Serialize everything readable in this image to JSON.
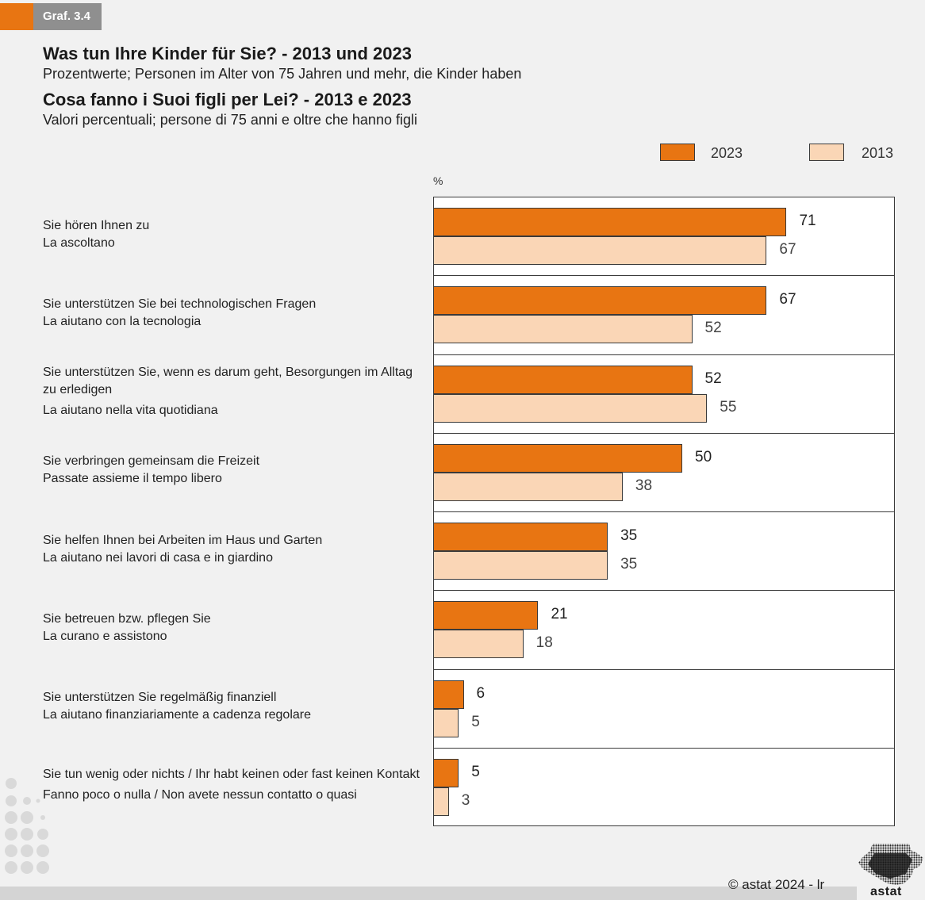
{
  "tag": "Graf. 3.4",
  "title_de": "Was tun Ihre Kinder für Sie? - 2013 und 2023",
  "subtitle_de": "Prozentwerte; Personen im Alter von 75 Jahren und mehr, die Kinder haben",
  "title_it": "Cosa fanno i Suoi figli per Lei? - 2013 e 2023",
  "subtitle_it": "Valori percentuali; persone di 75 anni e oltre che hanno figli",
  "footer": {
    "copyright": "© astat 2024 - lr",
    "logo_text": "astat"
  },
  "colors": {
    "y2023": "#e87512",
    "y2013": "#fad6b6",
    "tag_orange": "#e87512",
    "tag_grey": "#8f8f8f"
  },
  "chart_data": {
    "type": "bar",
    "orientation": "horizontal",
    "unit_label": "%",
    "xlim": [
      0,
      90
    ],
    "grid": false,
    "legend_placement": "top-right",
    "categories": [
      {
        "de": "Sie hören Ihnen zu",
        "it": "La ascoltano"
      },
      {
        "de": "Sie unterstützen Sie bei technologischen Fragen",
        "it": "La aiutano con la tecnologia"
      },
      {
        "de": "Sie unterstützen Sie, wenn es darum geht, Besorgungen im Alltag zu erledigen",
        "it": "La aiutano nella vita quotidiana"
      },
      {
        "de": "Sie verbringen gemeinsam die Freizeit",
        "it": "Passate assieme il tempo libero"
      },
      {
        "de": "Sie helfen Ihnen bei Arbeiten im Haus und Garten",
        "it": "La aiutano nei lavori di casa e in giardino"
      },
      {
        "de": "Sie betreuen bzw. pflegen Sie",
        "it": "La curano e assistono"
      },
      {
        "de": "Sie unterstützen Sie regelmäßig finanziell",
        "it": "La aiutano finanziariamente a cadenza regolare"
      },
      {
        "de": "Sie tun wenig oder nichts / Ihr habt keinen oder fast keinen Kontakt",
        "it": "Fanno poco o nulla / Non avete nessun contatto o quasi"
      }
    ],
    "series": [
      {
        "name": "2023",
        "values": [
          71,
          67,
          52,
          50,
          35,
          21,
          6,
          5
        ]
      },
      {
        "name": "2013",
        "values": [
          67,
          52,
          55,
          38,
          35,
          18,
          5,
          3
        ]
      }
    ]
  }
}
